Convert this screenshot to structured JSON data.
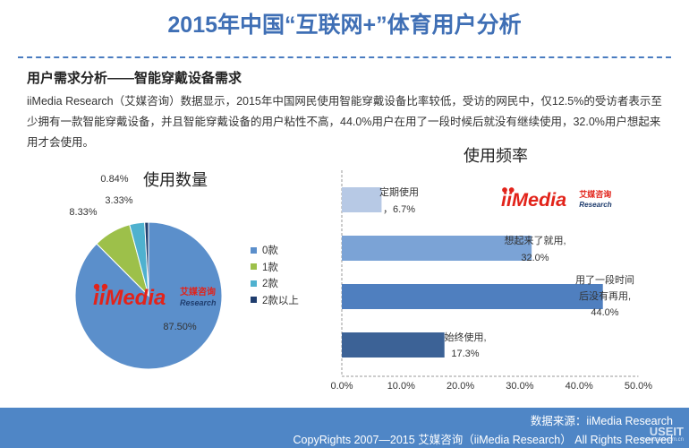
{
  "header": {
    "title": "2015年中国“互联网+”体育用户分析"
  },
  "section": {
    "subtitle": "用户需求分析——智能穿戴设备需求",
    "paragraph": "iiMedia Research（艾媒咨询）数据显示，2015年中国网民使用智能穿戴设备比率较低，受访的网民中，仅12.5%的受访者表示至少拥有一款智能穿戴设备，并且智能穿戴设备的用户粘性不高，44.0%用户在用了一段时候后就没有继续使用，32.0%用户想起来用才会使用。"
  },
  "watermark": {
    "brand": "iiMedia",
    "cn": "艾媒咨询",
    "en": "Research"
  },
  "chart_data": [
    {
      "type": "pie",
      "title": "使用数量",
      "categories": [
        "0款",
        "1款",
        "2款",
        "2款以上"
      ],
      "values": [
        87.5,
        8.33,
        3.33,
        0.84
      ],
      "labels": [
        "87.50%",
        "8.33%",
        "3.33%",
        "0.84%"
      ],
      "colors": [
        "#5b8fcb",
        "#9dc04a",
        "#4fb1cf",
        "#1f3d6e"
      ],
      "legend": "right"
    },
    {
      "type": "bar",
      "orientation": "horizontal",
      "title": "使用频率",
      "categories": [
        "定期使用",
        "想起来了就用,",
        "用了一段时间后没有再用,",
        "始终使用,"
      ],
      "values": [
        6.7,
        32.0,
        44.0,
        17.3
      ],
      "labels": [
        [
          "定期使用",
          "，6.7%"
        ],
        [
          "想起来了就用,",
          "32.0%"
        ],
        [
          "用了一段时间",
          "后没有再用,",
          "44.0%"
        ],
        [
          "始终使用,",
          "17.3%"
        ]
      ],
      "colors": [
        "#b7c9e5",
        "#7ba3d6",
        "#4f7fbf",
        "#3c6296"
      ],
      "xlim": [
        0,
        50
      ],
      "ticks": [
        "0.0%",
        "10.0%",
        "20.0%",
        "30.0%",
        "40.0%",
        "50.0%"
      ]
    }
  ],
  "footer": {
    "source": "数据来源：iiMedia Research",
    "copyright": "CopyRights 2007—2015 艾媒咨询（iiMedia Research） All Rights Reserved",
    "logo": "USEIT",
    "logo_sub": "www.useit.com.cn"
  }
}
